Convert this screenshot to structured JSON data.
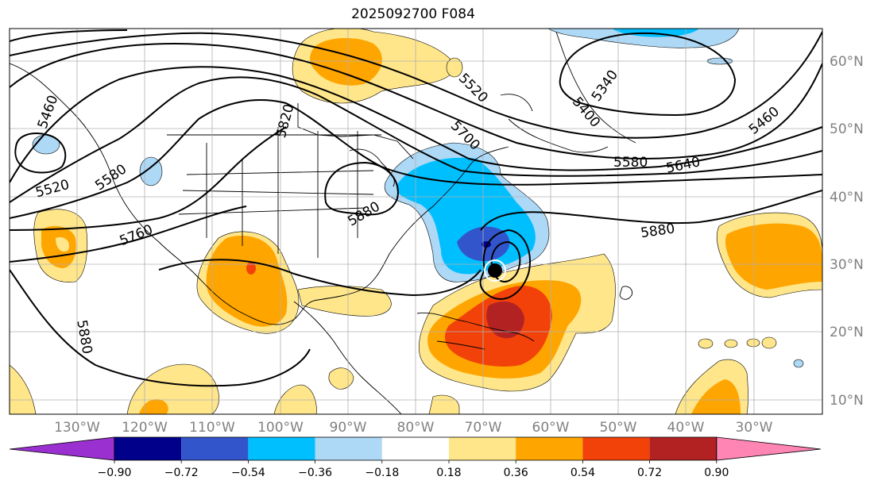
{
  "title": "2025092700 F084",
  "lat_labels": [
    "60°N",
    "50°N",
    "40°N",
    "30°N",
    "20°N",
    "10°N"
  ],
  "lon_labels": [
    "130°W",
    "120°W",
    "110°W",
    "100°W",
    "90°W",
    "80°W",
    "70°W",
    "60°W",
    "50°W",
    "40°W",
    "30°W"
  ],
  "contour_labels": [
    "5460",
    "5520",
    "5580",
    "5760",
    "5820",
    "5880",
    "5700",
    "5520",
    "5340",
    "5460",
    "5400",
    "5580",
    "5640",
    "5880",
    "5880"
  ],
  "colorbar": {
    "ticks": [
      "−0.90",
      "−0.72",
      "−0.54",
      "−0.36",
      "−0.18",
      "0.18",
      "0.36",
      "0.54",
      "0.72",
      "0.90"
    ],
    "colors": {
      "lt_-0.90": "#9b30d0",
      "-0.90_-0.72": "#00008b",
      "-0.72_-0.54": "#3355cc",
      "-0.54_-0.36": "#00bfff",
      "-0.36_-0.18": "#add8f6",
      "-0.18_0.18": "#ffffff",
      "0.18_0.36": "#ffe68a",
      "0.36_0.54": "#ffa500",
      "0.54_0.72": "#f2420a",
      "0.72_0.90": "#b22222",
      "gt_0.90": "#ff85b4"
    }
  },
  "storm_marker": "tropical-cyclone-dot"
}
